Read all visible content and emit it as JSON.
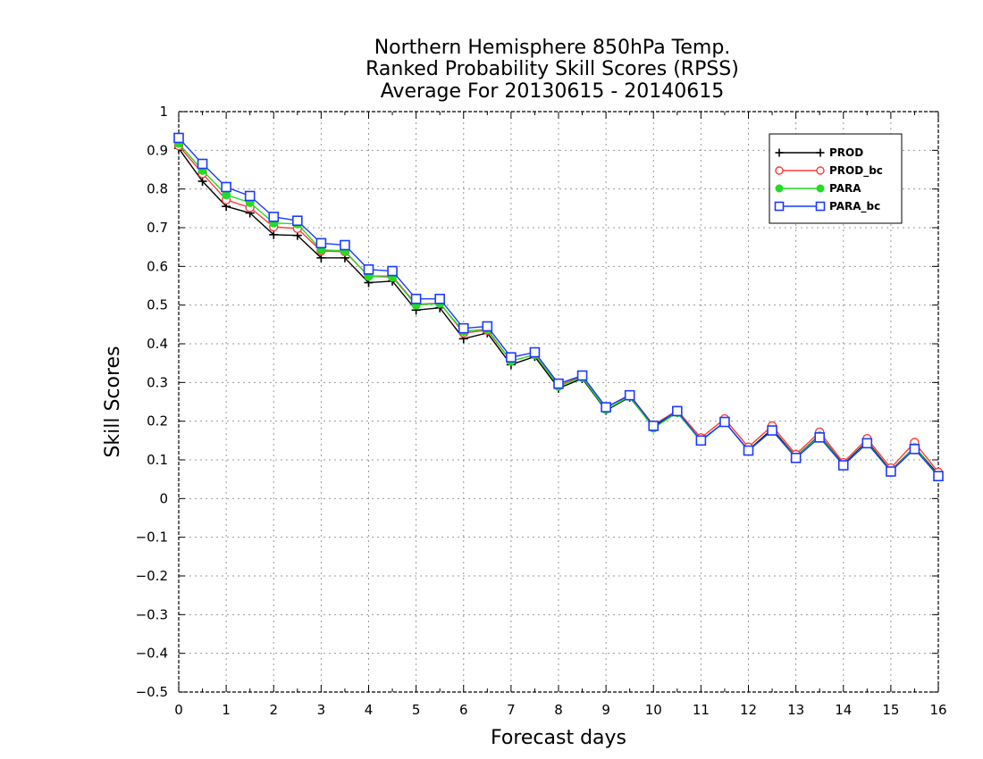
{
  "chart_data": {
    "type": "line",
    "title_lines": [
      "Northern Hemisphere 850hPa Temp.",
      "Ranked Probability Skill Scores (RPSS)",
      "Average For 20130615 - 20140615"
    ],
    "xlabel": "Forecast days",
    "ylabel": "Skill Scores",
    "xlim": [
      0,
      16
    ],
    "ylim": [
      -0.5,
      1
    ],
    "x_ticks": [
      0,
      1,
      2,
      3,
      4,
      5,
      6,
      7,
      8,
      9,
      10,
      11,
      12,
      13,
      14,
      15,
      16
    ],
    "y_ticks": [
      -0.5,
      -0.4,
      -0.3,
      -0.2,
      -0.1,
      0,
      0.1,
      0.2,
      0.3,
      0.4,
      0.5,
      0.6,
      0.7,
      0.8,
      0.9,
      1
    ],
    "y_tick_labels": [
      "−0.5",
      "−0.4",
      "−0.3",
      "−0.2",
      "−0.1",
      "0",
      "0.1",
      "0.2",
      "0.3",
      "0.4",
      "0.5",
      "0.6",
      "0.7",
      "0.8",
      "0.9",
      "1"
    ],
    "grid": true,
    "legend_position": "top-right",
    "x": [
      0,
      0.5,
      1,
      1.5,
      2,
      2.5,
      3,
      3.5,
      4,
      4.5,
      5,
      5.5,
      6,
      6.5,
      7,
      7.5,
      8,
      8.5,
      9,
      9.5,
      10,
      10.5,
      11,
      11.5,
      12,
      12.5,
      13,
      13.5,
      14,
      14.5,
      15,
      15.5,
      16
    ],
    "series": [
      {
        "name": "PROD",
        "color": "#000000",
        "marker": "plus",
        "values": [
          0.905,
          0.82,
          0.755,
          0.738,
          0.682,
          0.68,
          0.622,
          0.622,
          0.558,
          0.562,
          0.487,
          0.493,
          0.413,
          0.428,
          0.346,
          0.367,
          0.285,
          0.31,
          0.228,
          0.262,
          0.185,
          0.222,
          0.15,
          0.198,
          0.125,
          0.18,
          0.108,
          0.164,
          0.088,
          0.148,
          0.072,
          0.133,
          0.062
        ]
      },
      {
        "name": "PROD_bc",
        "color": "#ff3b3b",
        "marker": "circle-open",
        "values": [
          0.912,
          0.84,
          0.772,
          0.752,
          0.702,
          0.698,
          0.64,
          0.638,
          0.575,
          0.575,
          0.502,
          0.505,
          0.428,
          0.435,
          0.355,
          0.372,
          0.292,
          0.316,
          0.236,
          0.268,
          0.19,
          0.228,
          0.157,
          0.206,
          0.133,
          0.188,
          0.114,
          0.172,
          0.093,
          0.155,
          0.079,
          0.145,
          0.068
        ]
      },
      {
        "name": "PARA",
        "color": "#22dd22",
        "marker": "circle-filled",
        "values": [
          0.918,
          0.848,
          0.785,
          0.765,
          0.712,
          0.71,
          0.643,
          0.64,
          0.574,
          0.572,
          0.5,
          0.504,
          0.432,
          0.438,
          0.355,
          0.372,
          0.29,
          0.313,
          0.23,
          0.264,
          0.182,
          0.222,
          0.148,
          0.198,
          0.124,
          0.176,
          0.107,
          0.162,
          0.086,
          0.145,
          0.07,
          0.132,
          0.058
        ]
      },
      {
        "name": "PARA_bc",
        "color": "#1a3bff",
        "marker": "square-open",
        "values": [
          0.932,
          0.865,
          0.805,
          0.782,
          0.728,
          0.718,
          0.66,
          0.655,
          0.592,
          0.588,
          0.516,
          0.516,
          0.44,
          0.445,
          0.365,
          0.378,
          0.297,
          0.318,
          0.236,
          0.267,
          0.188,
          0.226,
          0.15,
          0.198,
          0.124,
          0.176,
          0.105,
          0.158,
          0.086,
          0.143,
          0.07,
          0.128,
          0.058
        ]
      }
    ]
  }
}
